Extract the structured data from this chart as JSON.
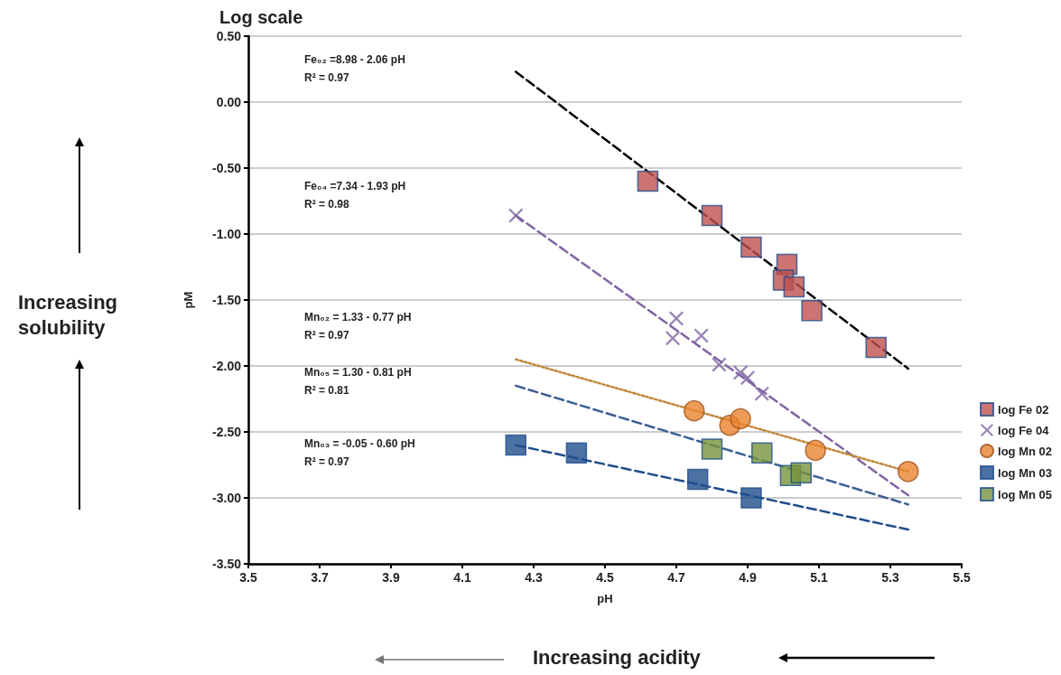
{
  "chart_data": {
    "type": "scatter",
    "title": "Log scale",
    "xlabel": "pH",
    "ylabel": "pM",
    "xlim": [
      3.5,
      5.5
    ],
    "xticks": [
      3.5,
      3.7,
      3.9,
      4.1,
      4.3,
      4.5,
      4.7,
      4.9,
      5.1,
      5.3,
      5.5
    ],
    "ylim": [
      -3.5,
      0.5
    ],
    "yticks": [
      {
        "value": 0.5,
        "label": "0.50"
      },
      {
        "value": 0,
        "label": "0.00"
      },
      {
        "value": -0.5,
        "label": "-0.50"
      },
      {
        "value": -1,
        "label": "-1.00"
      },
      {
        "value": -1.5,
        "label": "-1.50"
      },
      {
        "value": -2,
        "label": "-2.00"
      },
      {
        "value": -2.5,
        "label": "-2.50"
      },
      {
        "value": -3,
        "label": "-3.00"
      },
      {
        "value": -3.5,
        "label": "-3.50"
      }
    ],
    "grid": "y",
    "legend": "right",
    "series": [
      {
        "name": "log Fe 02",
        "type": "scatter",
        "marker": "square",
        "color": "#c0504d",
        "x": [
          4.62,
          4.8,
          4.91,
          5.01,
          5.0,
          5.03,
          5.08,
          5.26
        ],
        "values": [
          -0.6,
          -0.86,
          -1.1,
          -1.23,
          -1.35,
          -1.4,
          -1.58,
          -1.86
        ]
      },
      {
        "name": "log Fe 04",
        "type": "scatter",
        "marker": "cross",
        "color": "#8064a2",
        "x": [
          4.25,
          4.7,
          4.69,
          4.77,
          4.82,
          4.88,
          4.9,
          4.94
        ],
        "values": [
          -0.86,
          -1.64,
          -1.79,
          -1.77,
          -1.99,
          -2.05,
          -2.09,
          -2.21
        ]
      },
      {
        "name": "log Mn 02",
        "type": "scatter",
        "marker": "circle",
        "color": "#e8852e",
        "x": [
          4.75,
          4.85,
          4.88,
          5.09,
          5.35
        ],
        "values": [
          -2.34,
          -2.45,
          -2.4,
          -2.64,
          -2.8
        ]
      },
      {
        "name": "log Mn 03",
        "type": "scatter",
        "marker": "square",
        "color": "#1f4e8c",
        "x": [
          4.25,
          4.42,
          4.76,
          4.91
        ],
        "values": [
          -2.6,
          -2.66,
          -2.86,
          -3.0
        ]
      },
      {
        "name": "log Mn 05",
        "type": "scatter",
        "marker": "square",
        "color": "#77933c",
        "x": [
          4.8,
          4.94,
          5.02,
          5.05
        ],
        "values": [
          -2.63,
          -2.66,
          -2.83,
          -2.81
        ]
      },
      {
        "type": "line",
        "marker": "none",
        "line_style": "dashed",
        "color": "#000000",
        "x": [
          4.25,
          5.35
        ],
        "values": [
          0.23,
          -2.02
        ]
      },
      {
        "type": "line",
        "marker": "none",
        "line_style": "dashed",
        "color": "#8064a2",
        "x": [
          4.25,
          5.35
        ],
        "values": [
          -0.86,
          -2.98
        ]
      },
      {
        "type": "line",
        "marker": "none",
        "line_style": "dotted",
        "color": "#c0883a",
        "x": [
          4.25,
          5.35
        ],
        "values": [
          -1.95,
          -2.8
        ]
      },
      {
        "type": "line",
        "marker": "none",
        "line_style": "dashed",
        "color": "#3c5f95",
        "x": [
          4.25,
          5.35
        ],
        "values": [
          -2.15,
          -3.05
        ]
      },
      {
        "type": "line",
        "marker": "none",
        "line_style": "dashed",
        "color": "#1f4e8c",
        "x": [
          4.25,
          5.35
        ],
        "values": [
          -2.6,
          -3.24
        ]
      }
    ],
    "annotations": [
      "Fe₀₂ =8.98 - 2.06 pH",
      "R² = 0.97",
      "Fe₀₄ =7.34 - 1.93 pH",
      "R² = 0.98",
      "Mn₀₂ = 1.33 - 0.77 pH",
      "R² = 0.97",
      "Mn₀₅ = 1.30 - 0.81 pH",
      "R² = 0.81",
      "Mn₀₃ = -0.05 - 0.60 pH",
      "R² = 0.97",
      "Increasing solubility",
      "Increasing acidity"
    ]
  }
}
